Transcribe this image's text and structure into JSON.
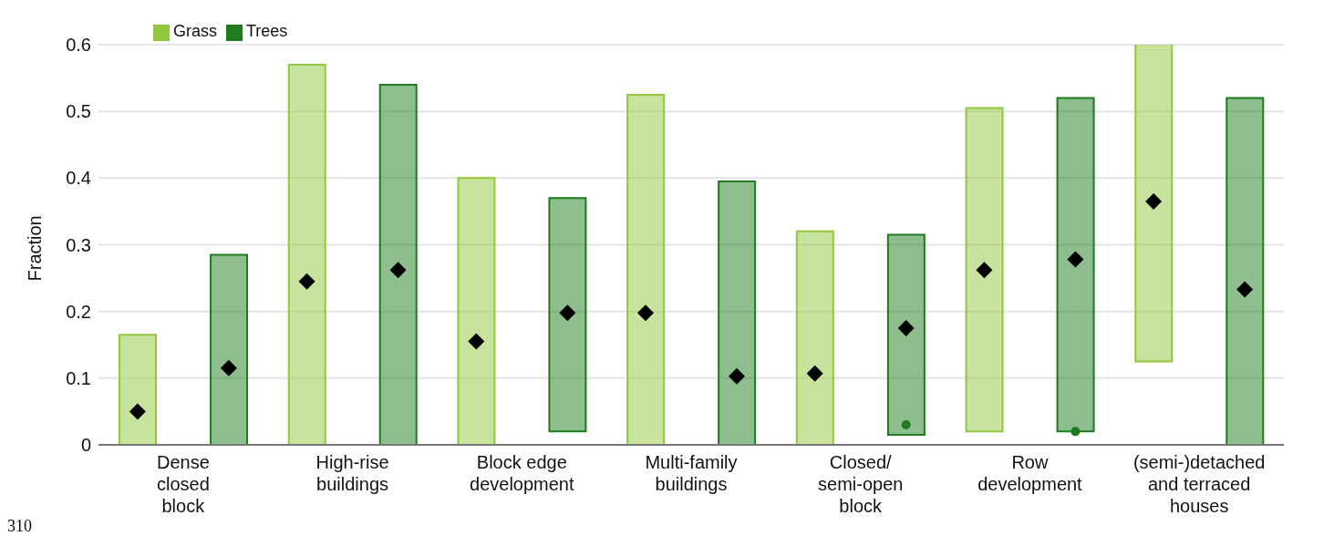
{
  "chart_data": {
    "type": "bar",
    "ylabel": "Fraction",
    "categories": [
      "Dense\nclosed\nblock",
      "High-rise\nbuildings",
      "Block edge\ndevelopment",
      "Multi-family\nbuildings",
      "Closed/\nsemi-open\nblock",
      "Row\ndevelopment",
      "(semi-)detached\nand terraced\nhouses"
    ],
    "series": [
      {
        "name": "Grass",
        "color": "#92c83e",
        "base": [
          0,
          0,
          0,
          0,
          0,
          0.02,
          0.125
        ],
        "values": [
          0.165,
          0.57,
          0.4,
          0.525,
          0.32,
          0.485,
          0.48
        ]
      },
      {
        "name": "Trees",
        "color": "#1e7b1e",
        "base": [
          0,
          0,
          0.02,
          0,
          0.015,
          0.02,
          0
        ],
        "values": [
          0.285,
          0.54,
          0.35,
          0.395,
          0.3,
          0.5,
          0.52
        ]
      },
      {
        "type": "scatter",
        "color": "#000000",
        "marker": "diamond",
        "x": [
          "Dense\nclosed\nblock",
          "High-rise\nbuildings",
          "Block edge\ndevelopment",
          "Multi-family\nbuildings",
          "Closed/\nsemi-open\nblock",
          "Row\ndevelopment",
          "(semi-)detached\nand terraced\nhouses"
        ],
        "values": [
          0.05,
          0.245,
          0.155,
          0.198,
          0.107,
          0.262,
          0.365
        ]
      },
      {
        "type": "scatter",
        "color": "#000000",
        "marker": "diamond",
        "x": [
          "Dense\nclosed\nblock",
          "High-rise\nbuildings",
          "Block edge\ndevelopment",
          "Multi-family\nbuildings",
          "Closed/\nsemi-open\nblock",
          "Row\ndevelopment",
          "(semi-)detached\nand terraced\nhouses"
        ],
        "values": [
          0.115,
          0.262,
          0.198,
          0.103,
          0.175,
          0.278,
          0.233
        ]
      },
      {
        "type": "scatter",
        "color": "#1e7b1e",
        "marker": "circle",
        "x": [
          "Closed/\nsemi-open\nblock",
          "Row\ndevelopment"
        ],
        "values": [
          0.03,
          0.02
        ]
      }
    ],
    "ylim": [
      0,
      0.6
    ],
    "yticks": [
      0,
      0.1,
      0.2,
      0.3,
      0.4,
      0.5,
      0.6
    ],
    "grid": "y",
    "legend": "top left",
    "annotations": [
      "310"
    ]
  }
}
